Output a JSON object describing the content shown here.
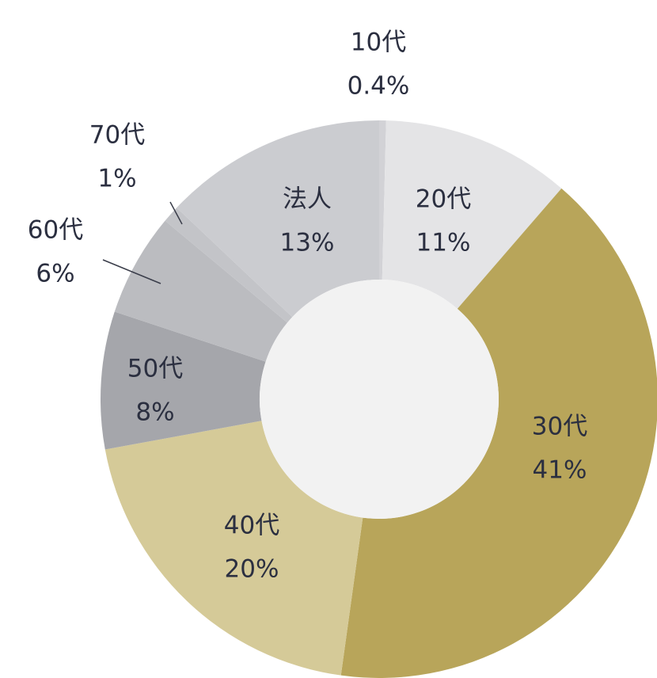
{
  "chart_data": {
    "type": "donut",
    "categories": [
      "10代",
      "20代",
      "30代",
      "40代",
      "50代",
      "60代",
      "70代",
      "法人"
    ],
    "values": [
      0.4,
      11,
      41,
      20,
      8,
      6,
      1,
      13
    ],
    "value_labels": [
      "0.4%",
      "11%",
      "41%",
      "20%",
      "8%",
      "6%",
      "1%",
      "13%"
    ],
    "colors": [
      "#d2d2d6",
      "#e4e4e6",
      "#b8a55a",
      "#d5ca98",
      "#a5a6ab",
      "#bbbcc0",
      "#c3c4c8",
      "#cbccd0"
    ]
  }
}
